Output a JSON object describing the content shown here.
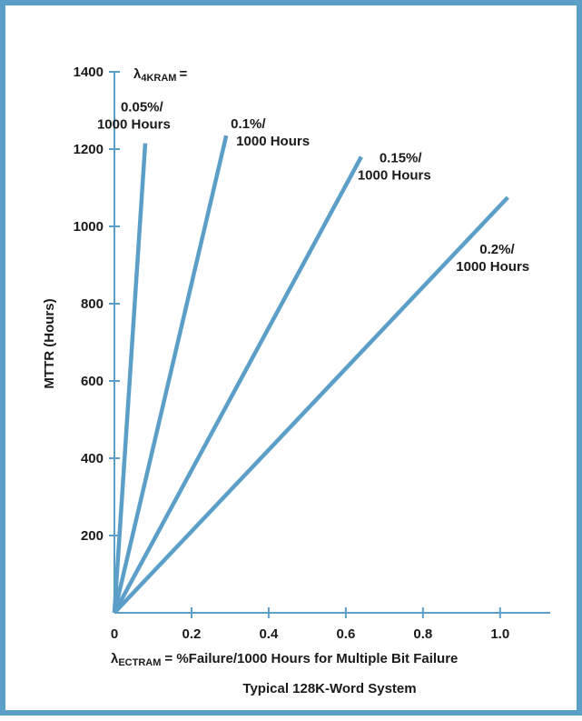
{
  "chart_data": {
    "type": "line",
    "ylabel": "MTTR (Hours)",
    "xlabel_prefix": "λ",
    "xlabel_sub": "ECTRAM",
    "xlabel_rest": "= %Failure/1000 Hours for Multiple Bit Failure",
    "caption": "Typical 128K-Word System",
    "legend_title_prefix": "λ",
    "legend_title_sub": "4KRAM",
    "legend_title_rest": "=",
    "xlim": [
      0,
      1.13
    ],
    "ylim": [
      0,
      1400
    ],
    "x_ticks": [
      0,
      0.2,
      0.4,
      0.6,
      0.8,
      1.0
    ],
    "x_tick_labels": [
      "0",
      "0.2",
      "0.4",
      "0.6",
      "0.8",
      "1.0"
    ],
    "y_ticks": [
      200,
      400,
      600,
      800,
      1000,
      1200,
      1400
    ],
    "y_tick_labels": [
      "200",
      "400",
      "600",
      "800",
      "1000",
      "1200",
      "1400"
    ],
    "grid": false,
    "line_color": "#5b9fc9",
    "series": [
      {
        "label_line1": "0.05%/",
        "label_line2": "1000 Hours",
        "x": [
          0,
          0.08
        ],
        "y": [
          0,
          1215
        ]
      },
      {
        "label_line1": "0.1%/",
        "label_line2": "1000 Hours",
        "x": [
          0,
          0.29
        ],
        "y": [
          0,
          1235
        ]
      },
      {
        "label_line1": "0.15%/",
        "label_line2": "1000 Hours",
        "x": [
          0,
          0.64
        ],
        "y": [
          0,
          1180
        ]
      },
      {
        "label_line1": "0.2%/",
        "label_line2": "1000 Hours",
        "x": [
          0,
          1.02
        ],
        "y": [
          0,
          1075
        ]
      }
    ]
  }
}
